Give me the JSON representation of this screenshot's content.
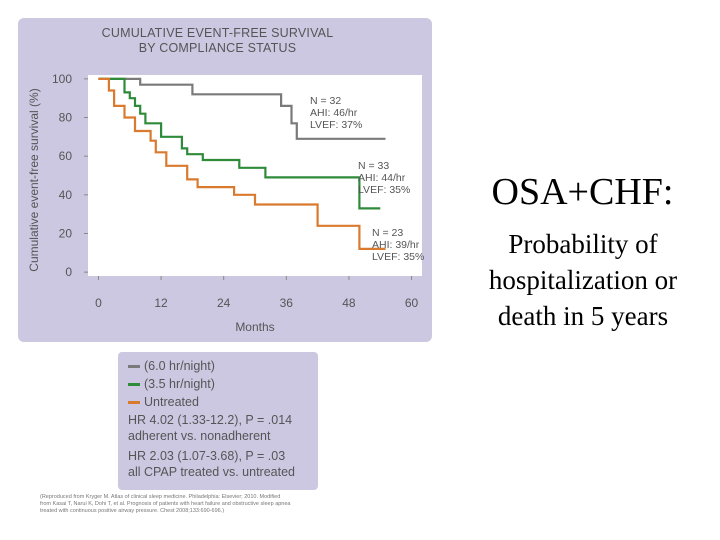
{
  "slide": {
    "heading": "OSA+CHF:",
    "subheading_lines": [
      "Probability of",
      "hospitalization or",
      "death in 5 years"
    ]
  },
  "figure": {
    "title_lines": [
      "CUMULATIVE EVENT-FREE SURVIVAL",
      "BY COMPLIANCE STATUS"
    ],
    "legend": [
      {
        "label": "(6.0 hr/night)",
        "color": "#7a7a7a"
      },
      {
        "label": "(3.5 hr/night)",
        "color": "#2e8b3a"
      },
      {
        "label": "Untreated",
        "color": "#d97a2e"
      }
    ],
    "hr_lines": [
      "HR 4.02 (1.33-12.2), P = .014",
      "adherent vs. nonadherent",
      "HR 2.03 (1.07-3.68), P = .03",
      "all CPAP treated vs. untreated"
    ],
    "citation_lines": [
      "(Reproduced from Kryger M. Atlas of clinical sleep medicine. Philadelphia: Elsevier; 2010. Modified",
      "from Kasai T, Narui K, Dohi T, et al. Prognosis of patients with heart failure and obstructive sleep apnea",
      "treated with continuous positive airway pressure. Chest 2008;133:690-696.)"
    ],
    "panel_bg": "#ccc8e2"
  },
  "chart_data": {
    "type": "line",
    "step": true,
    "title": "CUMULATIVE EVENT-FREE SURVIVAL BY COMPLIANCE STATUS",
    "xlabel": "Months",
    "ylabel": "Cumulative event-free survival (%)",
    "xlim": [
      -2,
      62
    ],
    "ylim": [
      -2,
      102
    ],
    "xticks": [
      0,
      12,
      24,
      36,
      48,
      60
    ],
    "yticks": [
      0,
      20,
      40,
      60,
      80,
      100
    ],
    "grid": false,
    "series": [
      {
        "name": "(6.0 hr/night)",
        "color": "#7a7a7a",
        "x": [
          0,
          8,
          8,
          18,
          18,
          35,
          35,
          37,
          37,
          38,
          38,
          55
        ],
        "y": [
          100,
          100,
          97,
          97,
          92,
          92,
          86,
          86,
          77,
          77,
          69,
          69
        ],
        "annotation": [
          "N = 32",
          "AHI: 46/hr",
          "LVEF: 37%"
        ]
      },
      {
        "name": "(3.5 hr/night)",
        "color": "#2e8b3a",
        "x": [
          0,
          5,
          5,
          6,
          6,
          7,
          7,
          8,
          8,
          9,
          9,
          12,
          12,
          16,
          16,
          17,
          17,
          20,
          20,
          27,
          27,
          32,
          32,
          50,
          50,
          54
        ],
        "y": [
          100,
          100,
          93,
          93,
          90,
          90,
          86,
          86,
          82,
          82,
          77,
          77,
          70,
          70,
          64,
          64,
          61,
          61,
          58,
          58,
          54,
          54,
          49,
          49,
          33,
          33
        ],
        "annotation": [
          "N = 33",
          "AHI: 44/hr",
          "LVEF: 35%"
        ]
      },
      {
        "name": "Untreated",
        "color": "#d97a2e",
        "x": [
          0,
          2,
          2,
          3,
          3,
          5,
          5,
          7,
          7,
          10,
          10,
          11,
          11,
          13,
          13,
          17,
          17,
          19,
          19,
          26,
          26,
          30,
          30,
          42,
          42,
          50,
          50,
          55
        ],
        "y": [
          100,
          100,
          94,
          94,
          86,
          86,
          80,
          80,
          73,
          73,
          68,
          68,
          62,
          62,
          55,
          55,
          48,
          48,
          44,
          44,
          40,
          40,
          35,
          35,
          24,
          24,
          12,
          12
        ],
        "annotation": [
          "N = 23",
          "AHI: 39/hr",
          "LVEF: 35%"
        ]
      }
    ]
  }
}
